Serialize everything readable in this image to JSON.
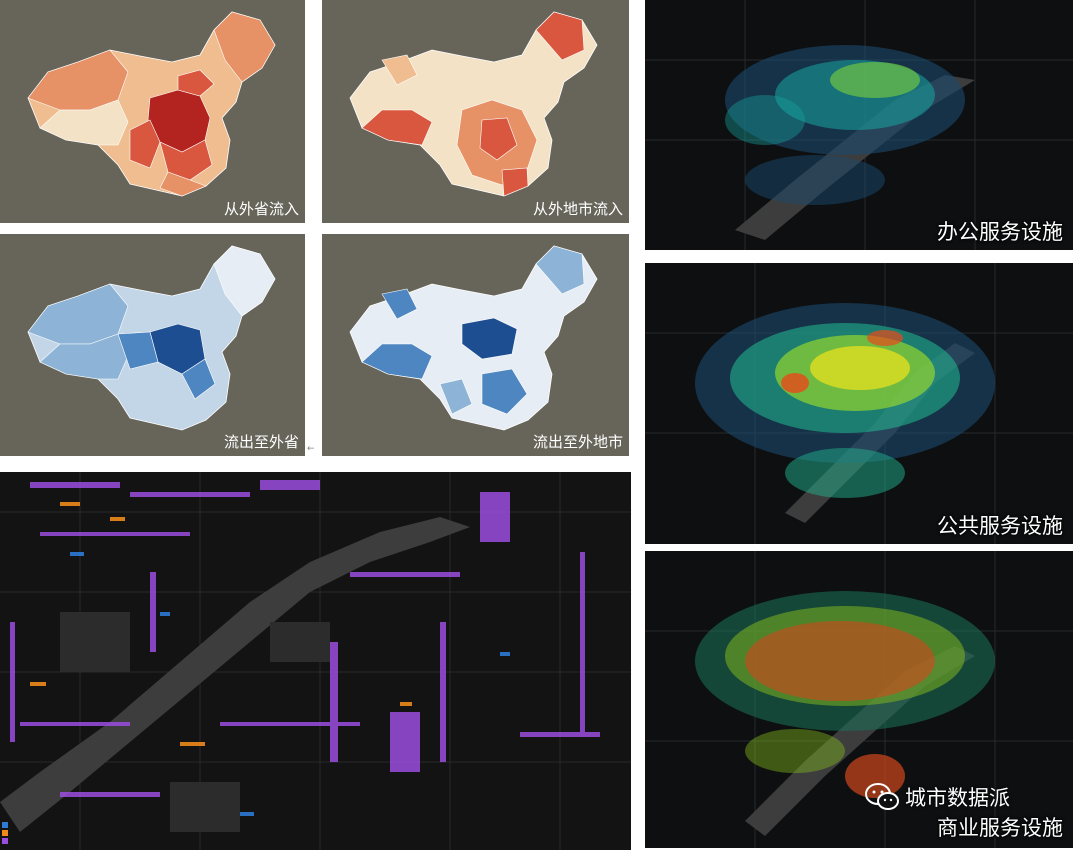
{
  "panels": {
    "inflow_province": {
      "caption": "从外省流入"
    },
    "inflow_city": {
      "caption": "从外地市流入"
    },
    "outflow_province": {
      "caption": "流出至外省"
    },
    "outflow_city": {
      "caption": "流出至外地市"
    },
    "office": {
      "caption": "办公服务设施"
    },
    "public": {
      "caption": "公共服务设施"
    },
    "commercial": {
      "caption": "商业服务设施"
    }
  },
  "watermark": {
    "brand": "城市数据派"
  },
  "colors": {
    "china_bg": "#67655a",
    "inflow_palette": [
      "#f3e2c6",
      "#efbd8f",
      "#e79266",
      "#d9573e",
      "#b3231f"
    ],
    "outflow_palette": [
      "#e6edf4",
      "#c2d6e8",
      "#8db4d6",
      "#4d86c0",
      "#1d4e91"
    ],
    "office_heat": [
      "#1a4a6e",
      "#17a6a0",
      "#7fd23b"
    ],
    "public_heat": [
      "#1a4a6e",
      "#22b08c",
      "#9ddb2a",
      "#f0e21b",
      "#e84a1a"
    ],
    "commercial_heat": [
      "#1b6c55",
      "#7fb51e",
      "#d2471c"
    ],
    "landuse_purple": "#9b4de0",
    "landuse_orange": "#f08a1c",
    "landuse_blue": "#2e7bd6"
  },
  "legend_items": [
    {
      "color": "#2e7bd6"
    },
    {
      "color": "#f08a1c"
    },
    {
      "color": "#9b4de0"
    }
  ]
}
